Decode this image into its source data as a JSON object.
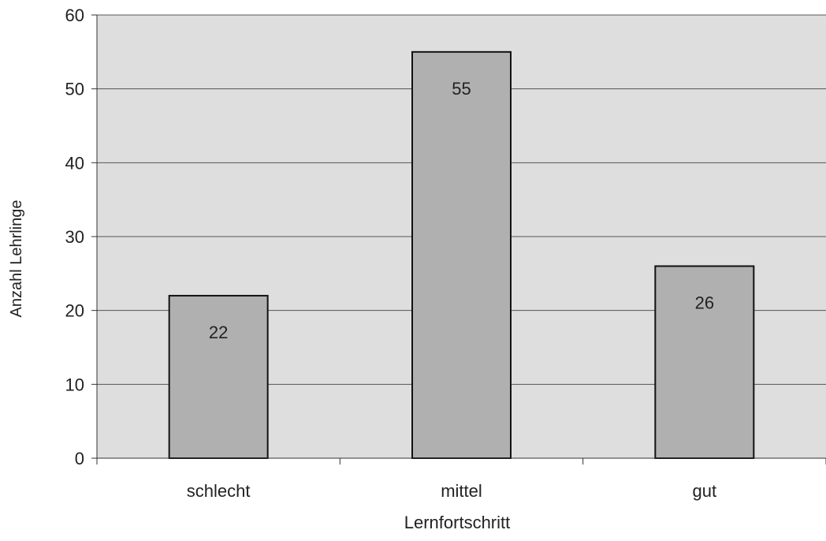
{
  "chart_data": {
    "type": "bar",
    "title": "",
    "xlabel": "Lernfortschritt",
    "ylabel": "Anzahl Lehrlinge",
    "categories": [
      "schlecht",
      "mittel",
      "gut"
    ],
    "values": [
      22,
      55,
      26
    ],
    "data_labels": [
      "22",
      "55",
      "26"
    ],
    "ylim": [
      0,
      60
    ],
    "yticks": [
      "0",
      "10",
      "20",
      "30",
      "40",
      "50",
      "60"
    ],
    "grid": true,
    "legend": "none",
    "colors": {
      "plot_background": "#dedede",
      "bar_fill": "#b0b0b0",
      "bar_stroke": "#111111",
      "gridline": "#555555",
      "axis": "#333333"
    }
  }
}
